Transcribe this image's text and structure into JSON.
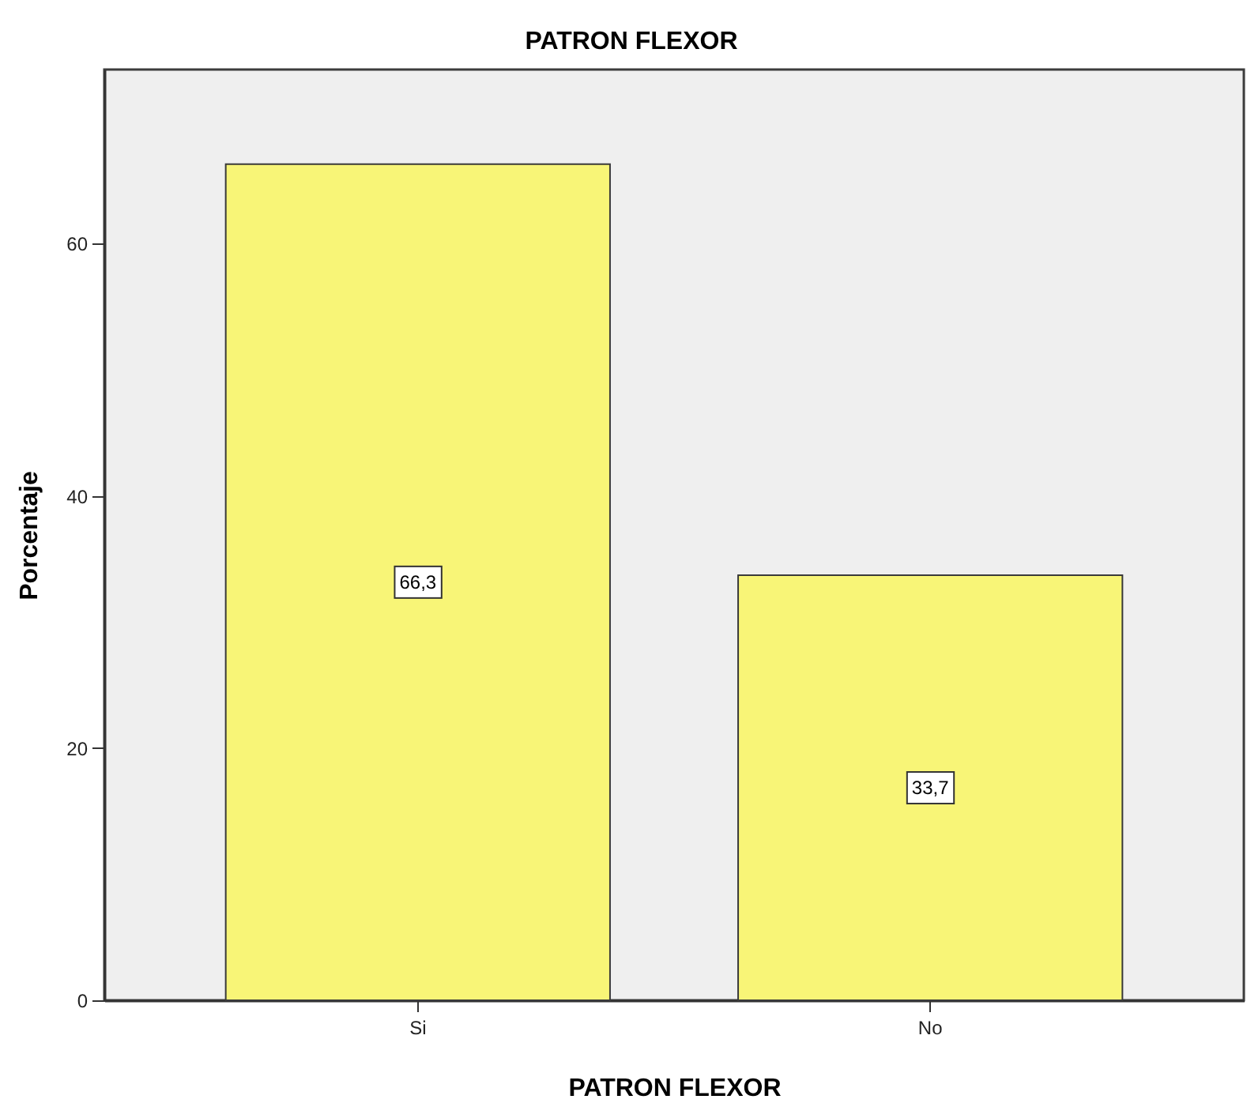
{
  "chart_data": {
    "type": "bar",
    "title": "PATRON FLEXOR",
    "xlabel": "PATRON FLEXOR",
    "ylabel": "Porcentaje",
    "categories": [
      "Si",
      "No"
    ],
    "values": [
      66.3,
      33.7
    ],
    "value_labels": [
      "66,3",
      "33,7"
    ],
    "color": "#f8f577",
    "ylim": [
      0,
      73.8
    ],
    "yticks": [
      0,
      20,
      40,
      60
    ]
  }
}
